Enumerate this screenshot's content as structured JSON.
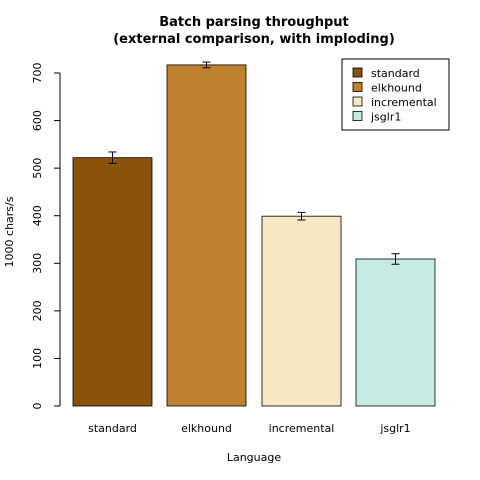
{
  "chart_data": {
    "type": "bar",
    "title": [
      "Batch parsing throughput",
      "(external comparison, with imploding)"
    ],
    "xlabel": "Language",
    "ylabel": "1000 chars/s",
    "categories": [
      "standard",
      "elkhound",
      "incremental",
      "jsglr1"
    ],
    "values": [
      522,
      717,
      399,
      309
    ],
    "errors": [
      12,
      6,
      8,
      11
    ],
    "colors": [
      "#8c510a",
      "#bf812d",
      "#f6e8c3",
      "#c7eae5"
    ],
    "ylim": [
      0,
      700
    ],
    "yticks": [
      0,
      100,
      200,
      300,
      400,
      500,
      600,
      700
    ],
    "grid": false,
    "legend": {
      "position": "top-right",
      "entries": [
        "standard",
        "elkhound",
        "incremental",
        "jsglr1"
      ]
    }
  }
}
